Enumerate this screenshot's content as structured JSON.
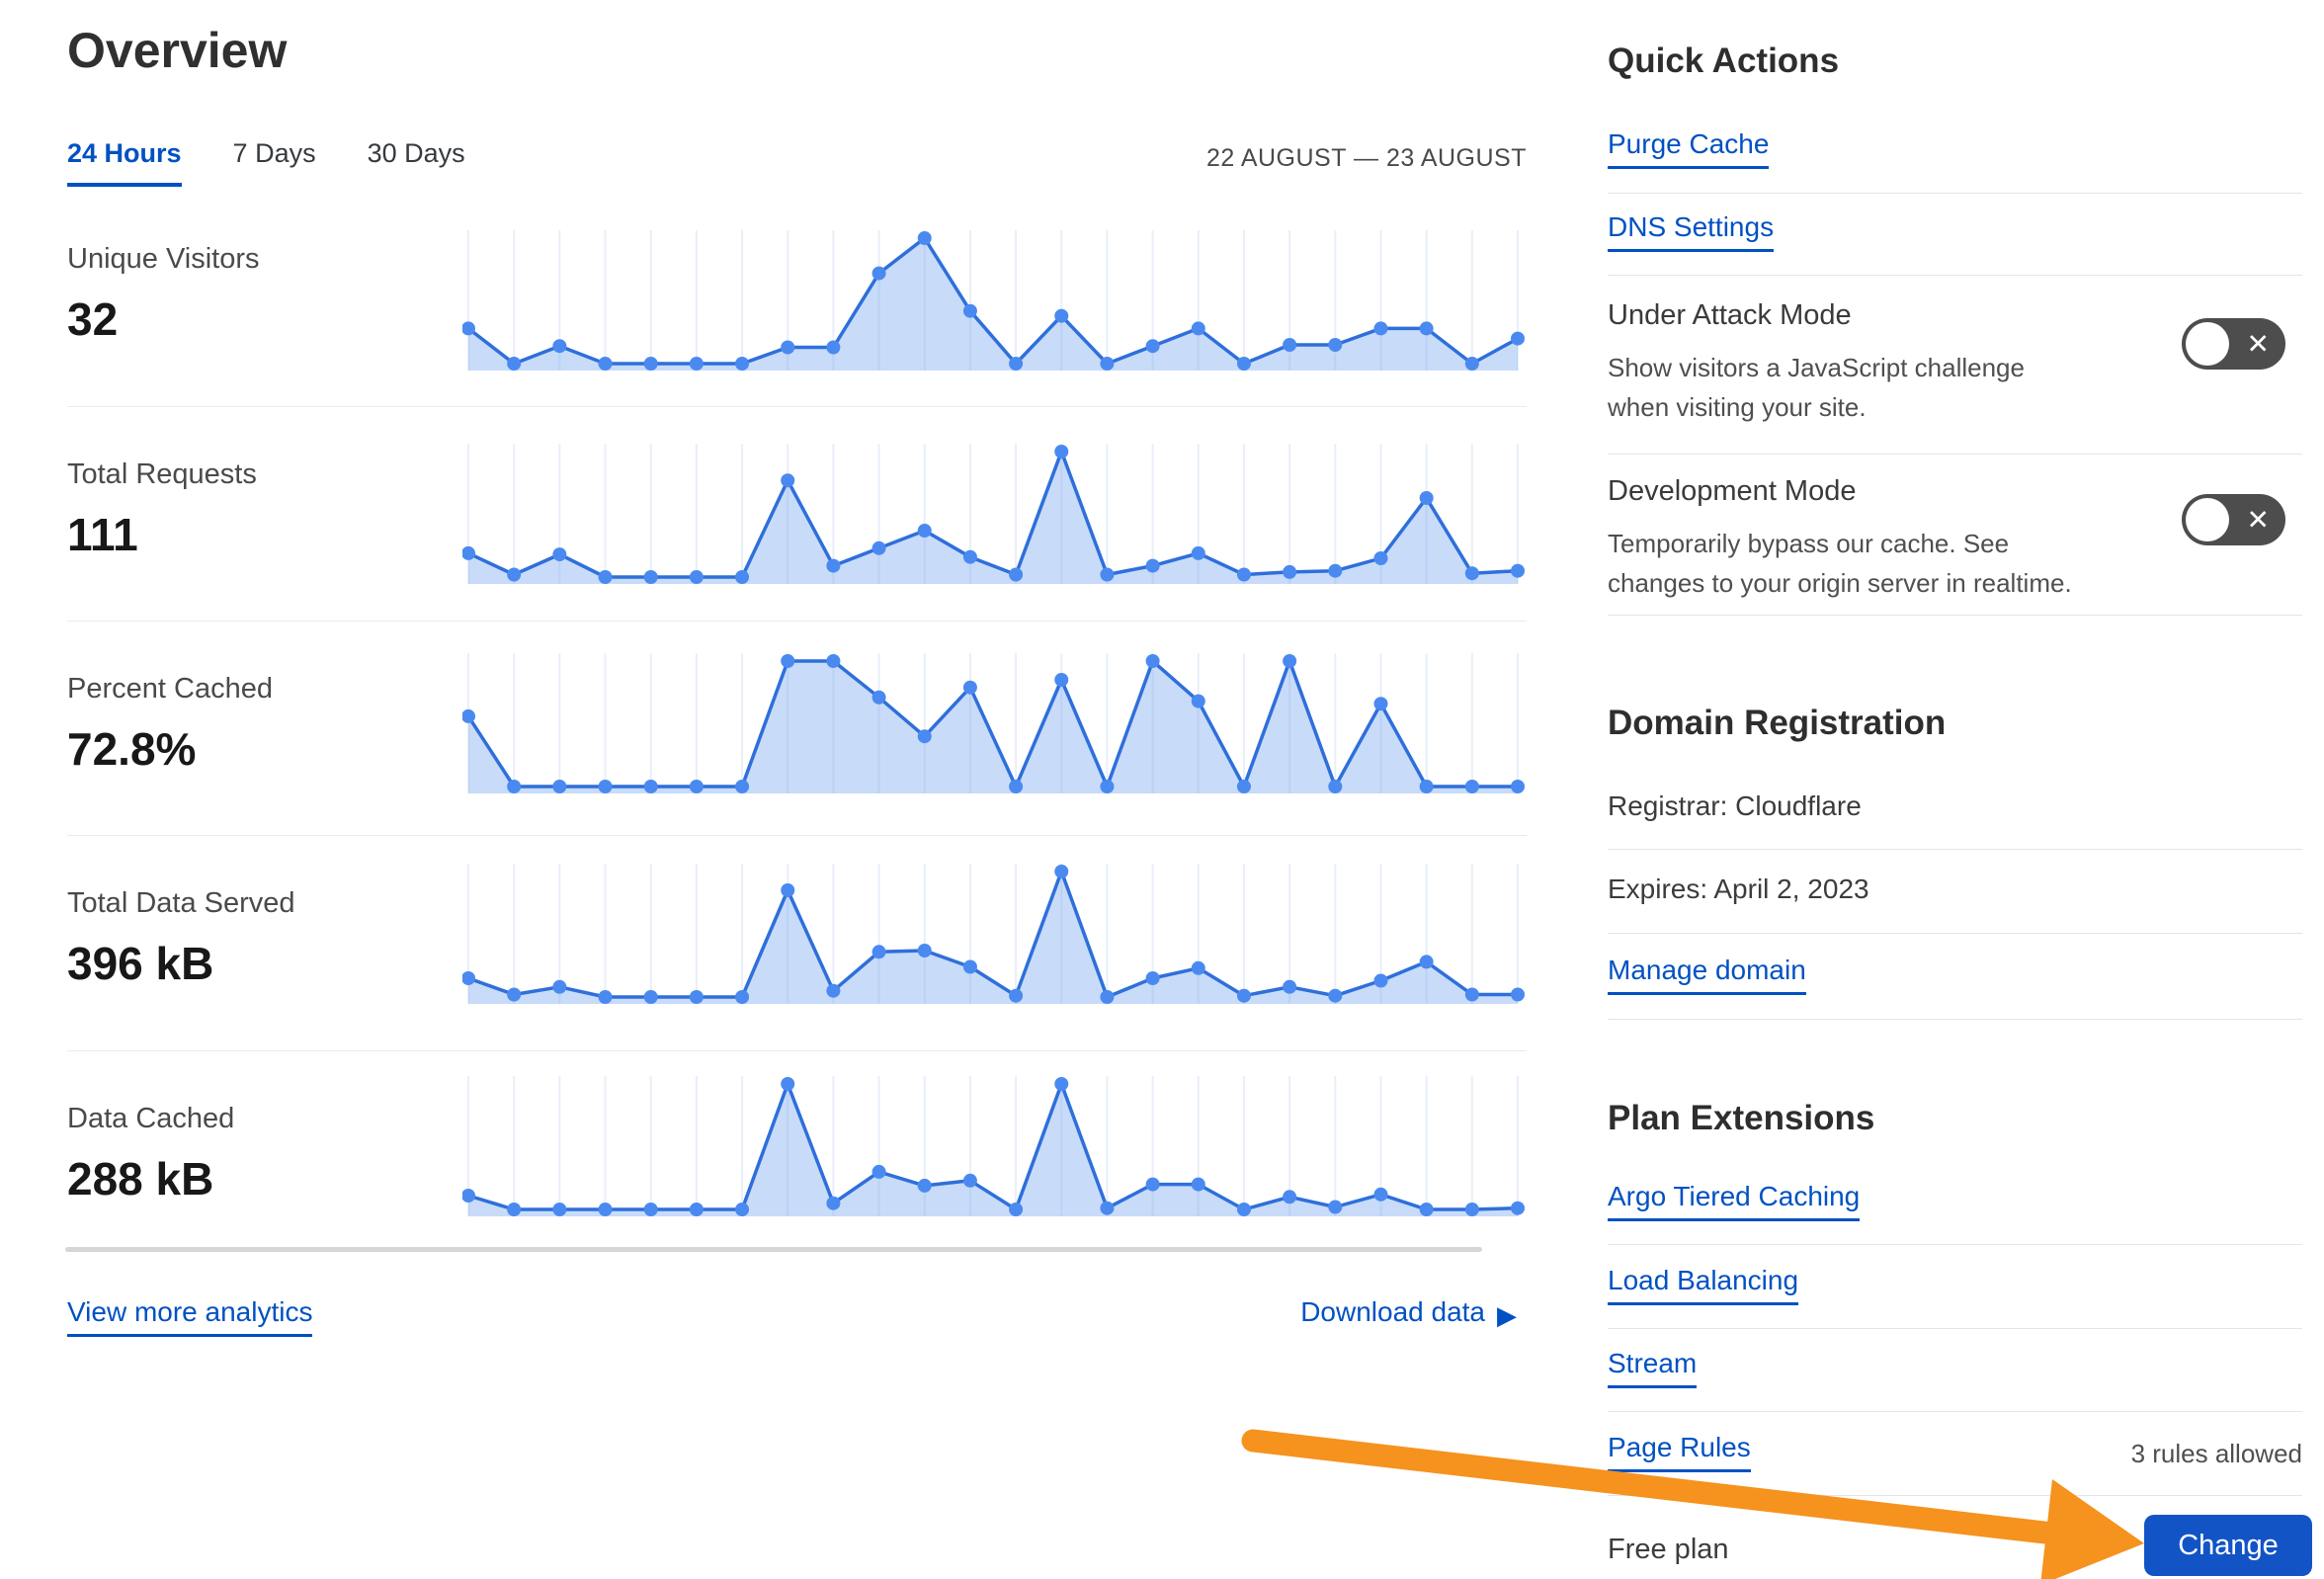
{
  "page": {
    "title": "Overview"
  },
  "tabs": [
    {
      "label": "24 Hours",
      "active": true
    },
    {
      "label": "7 Days",
      "active": false
    },
    {
      "label": "30 Days",
      "active": false
    }
  ],
  "date_range": "22 AUGUST — 23 AUGUST",
  "metrics": [
    {
      "label": "Unique Visitors",
      "value": "32"
    },
    {
      "label": "Total Requests",
      "value": "111"
    },
    {
      "label": "Percent Cached",
      "value": "72.8%"
    },
    {
      "label": "Total Data Served",
      "value": "396 kB"
    },
    {
      "label": "Data Cached",
      "value": "288 kB"
    }
  ],
  "links": {
    "view_more": "View more analytics",
    "download": "Download data"
  },
  "icons": {
    "play_right": "▶",
    "toggle_off": "✕"
  },
  "chart_data": [
    {
      "type": "area",
      "title": "Unique Visitors (24 hours)",
      "x_range": "22 AUGUST — 23 AUGUST",
      "point_count": 24,
      "ylim": [
        0,
        100
      ],
      "grid": true,
      "values": [
        28,
        0,
        14,
        0,
        0,
        0,
        0,
        13,
        13,
        72,
        100,
        42,
        0,
        38,
        0,
        14,
        28,
        0,
        15,
        15,
        28,
        28,
        0,
        20
      ]
    },
    {
      "type": "area",
      "title": "Total Requests (24 hours)",
      "x_range": "22 AUGUST — 23 AUGUST",
      "point_count": 24,
      "ylim": [
        0,
        100
      ],
      "grid": true,
      "values": [
        19,
        2,
        18,
        0,
        0,
        0,
        0,
        77,
        9,
        23,
        37,
        16,
        2,
        100,
        2,
        9,
        19,
        2,
        4,
        5,
        15,
        63,
        3,
        5
      ]
    },
    {
      "type": "area",
      "title": "Percent Cached (24 hours)",
      "x_range": "22 AUGUST — 23 AUGUST",
      "point_count": 24,
      "ylim": [
        0,
        100
      ],
      "grid": true,
      "values": [
        56,
        0,
        0,
        0,
        0,
        0,
        0,
        100,
        100,
        71,
        40,
        79,
        0,
        85,
        0,
        100,
        68,
        0,
        100,
        0,
        66,
        0,
        0,
        0
      ]
    },
    {
      "type": "area",
      "title": "Total Data Served (24 hours)",
      "x_range": "22 AUGUST — 23 AUGUST",
      "point_count": 24,
      "ylim": [
        0,
        100
      ],
      "grid": true,
      "values": [
        15,
        2,
        8,
        0,
        0,
        0,
        0,
        85,
        5,
        36,
        37,
        24,
        1,
        100,
        0,
        15,
        23,
        1,
        8,
        1,
        13,
        28,
        2,
        2
      ]
    },
    {
      "type": "area",
      "title": "Data Cached (24 hours)",
      "x_range": "22 AUGUST — 23 AUGUST",
      "point_count": 24,
      "ylim": [
        0,
        100
      ],
      "grid": true,
      "values": [
        11,
        0,
        0,
        0,
        0,
        0,
        0,
        100,
        5,
        30,
        19,
        23,
        0,
        100,
        1,
        20,
        20,
        0,
        10,
        2,
        12,
        0,
        0,
        1
      ]
    }
  ],
  "quick_actions": {
    "heading": "Quick Actions",
    "links": [
      "Purge Cache",
      "DNS Settings"
    ],
    "under_attack": {
      "title": "Under Attack Mode",
      "description": "Show visitors a JavaScript challenge when visiting your site.",
      "enabled": false
    },
    "development_mode": {
      "title": "Development Mode",
      "description": "Temporarily bypass our cache. See changes to your origin server in realtime.",
      "enabled": false
    }
  },
  "domain_registration": {
    "heading": "Domain Registration",
    "registrar": "Registrar: Cloudflare",
    "expires": "Expires: April 2, 2023",
    "manage_link": "Manage domain"
  },
  "plan_extensions": {
    "heading": "Plan Extensions",
    "links": [
      "Argo Tiered Caching",
      "Load Balancing",
      "Stream",
      "Page Rules"
    ],
    "page_rules_note": "3 rules allowed"
  },
  "plan": {
    "name": "Free plan",
    "change_label": "Change"
  },
  "theme": {
    "link_blue": "#0051c3",
    "chart_line": "#2e6fdb",
    "chart_dot": "#4a8af0",
    "chart_fill": "rgba(125,170,240,0.42)",
    "chart_grid": "#e9eff9",
    "arrow_orange": "#f6921e",
    "button_blue": "#1254c6",
    "toggle_gray": "#4d4d4d"
  }
}
